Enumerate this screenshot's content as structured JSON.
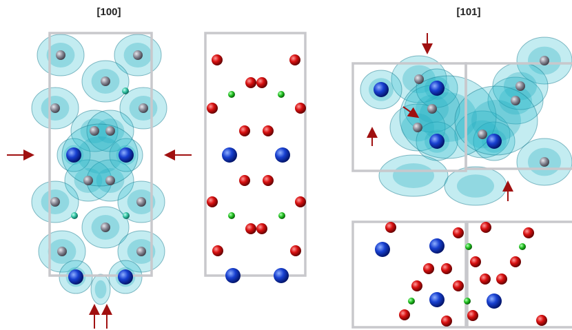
{
  "panels": [
    {
      "title": "[100]"
    },
    {
      "title": "[101]"
    }
  ]
}
